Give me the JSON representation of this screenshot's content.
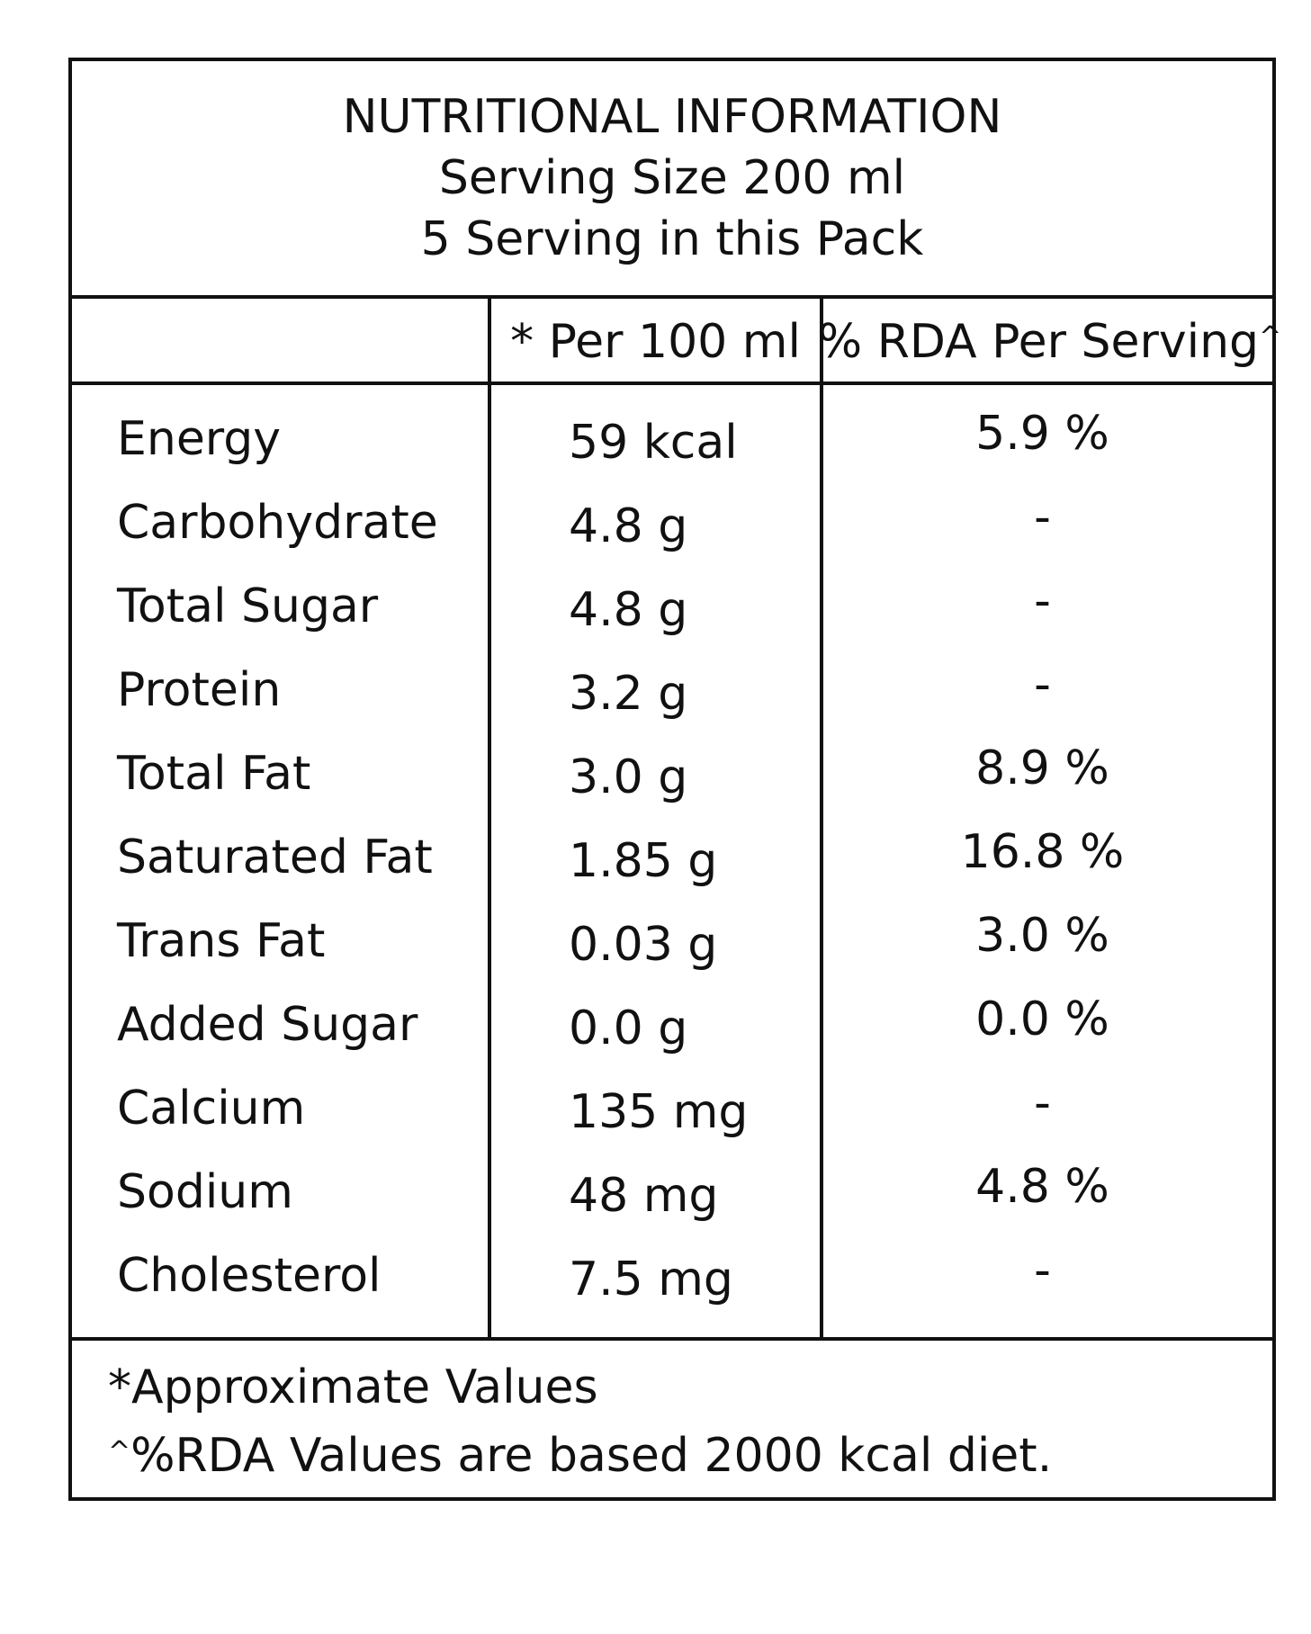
{
  "header": {
    "title": "NUTRITIONAL INFORMATION",
    "serving_size": "Serving Size 200 ml",
    "servings_per_pack": "5 Serving in this Pack"
  },
  "columns": {
    "per_100ml": "* Per 100 ml",
    "rda_per_serving": "% RDA Per Serving",
    "rda_marker": "^"
  },
  "nutrients": [
    {
      "name": "Energy",
      "per_100ml": "59 kcal",
      "rda": "5.9 %"
    },
    {
      "name": "Carbohydrate",
      "per_100ml": "4.8 g",
      "rda": "-"
    },
    {
      "name": "Total Sugar",
      "per_100ml": "4.8 g",
      "rda": "-"
    },
    {
      "name": "Protein",
      "per_100ml": "3.2 g",
      "rda": "-"
    },
    {
      "name": "Total Fat",
      "per_100ml": "3.0 g",
      "rda": "8.9 %"
    },
    {
      "name": "Saturated Fat",
      "per_100ml": "1.85 g",
      "rda": "16.8 %"
    },
    {
      "name": "Trans Fat",
      "per_100ml": "0.03 g",
      "rda": "3.0 %"
    },
    {
      "name": "Added Sugar",
      "per_100ml": "0.0 g",
      "rda": "0.0 %"
    },
    {
      "name": "Calcium",
      "per_100ml": "135 mg",
      "rda": "-"
    },
    {
      "name": "Sodium",
      "per_100ml": "48 mg",
      "rda": "4.8 %"
    },
    {
      "name": "Cholesterol",
      "per_100ml": "7.5 mg",
      "rda": "-"
    }
  ],
  "footnotes": {
    "approx": "*Approximate Values",
    "rda_marker": "^",
    "rda_note": "%RDA Values are based 2000 kcal diet."
  }
}
